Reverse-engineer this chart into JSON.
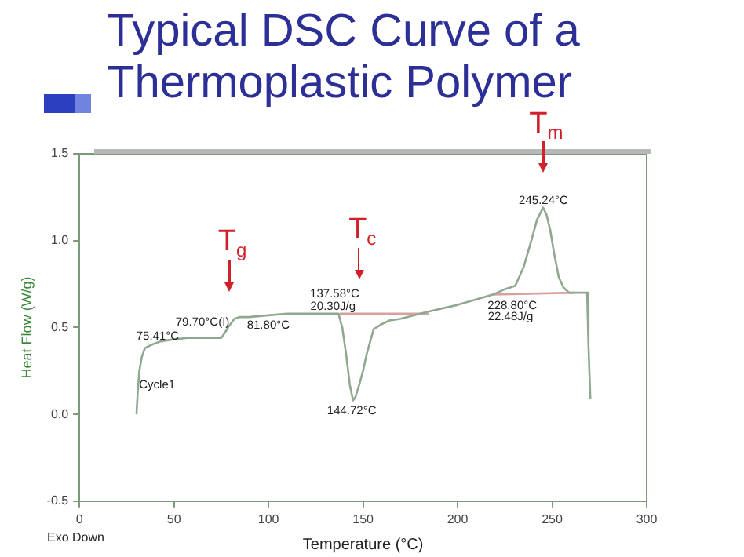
{
  "chart_data": {
    "type": "line",
    "title": "Typical DSC Curve of a Thermoplastic Polymer",
    "xlabel": "Temperature (°C)",
    "ylabel": "Heat Flow (W/g)",
    "xlim": [
      0,
      300
    ],
    "xticks": [
      0,
      50,
      100,
      150,
      200,
      250,
      300
    ],
    "ylim": [
      -0.5,
      1.5
    ],
    "yticks": [
      -0.5,
      {
        "value": 0,
        "label": "0.0"
      },
      0.5,
      {
        "value": 1,
        "label": "1.0"
      },
      1.5
    ],
    "grid": false,
    "legend": false,
    "marker": "none",
    "line_style": "solid",
    "series": [
      {
        "color": "#8fa88f",
        "x": [
          30.2,
          30.8,
          31.7,
          33,
          34.6,
          38,
          43,
          49,
          57,
          66,
          72,
          75,
          77,
          79.2,
          82,
          85,
          89.5,
          100,
          110,
          124,
          133,
          137,
          139,
          141,
          143,
          144.72,
          146,
          148,
          150,
          152,
          155.6,
          160,
          164,
          170,
          184,
          200,
          219,
          225,
          230.5,
          235,
          239,
          242,
          245.2,
          247,
          249,
          251,
          253.5,
          256,
          259,
          264,
          268.5,
          269.2,
          270.2
        ],
        "values": [
          0,
          0.12,
          0.25,
          0.33,
          0.38,
          0.4,
          0.42,
          0.43,
          0.44,
          0.44,
          0.44,
          0.44,
          0.47,
          0.51,
          0.55,
          0.56,
          0.56,
          0.57,
          0.58,
          0.58,
          0.58,
          0.58,
          0.5,
          0.35,
          0.17,
          0.08,
          0.1,
          0.17,
          0.25,
          0.35,
          0.49,
          0.52,
          0.54,
          0.55,
          0.59,
          0.63,
          0.69,
          0.72,
          0.74,
          0.85,
          1.0,
          1.12,
          1.19,
          1.15,
          1.06,
          0.93,
          0.79,
          0.73,
          0.7,
          0.7,
          0.7,
          0.4,
          0.09
        ]
      },
      {
        "color": "#d9a0a0",
        "x": [
          137.58,
          185
        ],
        "values": [
          0.58,
          0.58
        ]
      },
      {
        "color": "#d9a0a0",
        "x": [
          219,
          262
        ],
        "values": [
          0.69,
          0.7
        ]
      }
    ],
    "annotations": [
      "75.41°C",
      "79.70°C(I)",
      "81.80°C",
      "137.58°C",
      "20.30J/g",
      "144.72°C",
      "245.24°C",
      "228.80°C",
      "22.48J/g",
      "Cycle1",
      {
        "text": "T$_{g}$",
        "x": 79.2,
        "y": 0.51
      },
      {
        "text": "T$_{c}$",
        "x": 148,
        "y": 0.58
      },
      {
        "text": "T$_{m}$",
        "x": 245.2,
        "y": 1.19
      },
      "Exo Down"
    ]
  }
}
